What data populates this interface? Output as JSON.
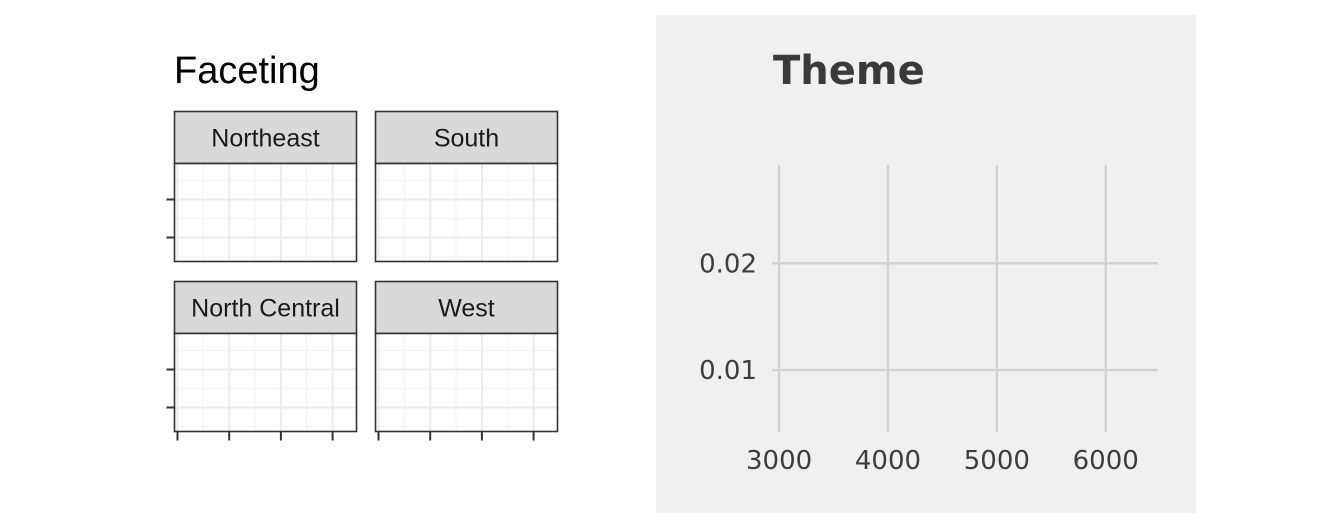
{
  "chart_data": [
    {
      "type": "scatter",
      "title": "Faceting",
      "facets": [
        "Northeast",
        "South",
        "North Central",
        "West"
      ],
      "grid": true,
      "x_tick_count": 4,
      "y_tick_count": 2,
      "colors": {
        "strip_fill": "#d9d9d9",
        "panel_border": "#333333",
        "grid_major": "#ebebeb",
        "grid_minor": "#f4f4f4"
      }
    },
    {
      "type": "scatter",
      "title": "Theme",
      "x_ticks": [
        3000,
        4000,
        5000,
        6000
      ],
      "y_ticks": [
        0.01,
        0.02
      ],
      "xlim": [
        2990,
        6480
      ],
      "ylim": [
        0.0042,
        0.0292
      ],
      "grid": true,
      "colors": {
        "background": "#f0f0f0",
        "grid": "#d2d2d2",
        "text": "#3d3d3d"
      }
    }
  ]
}
